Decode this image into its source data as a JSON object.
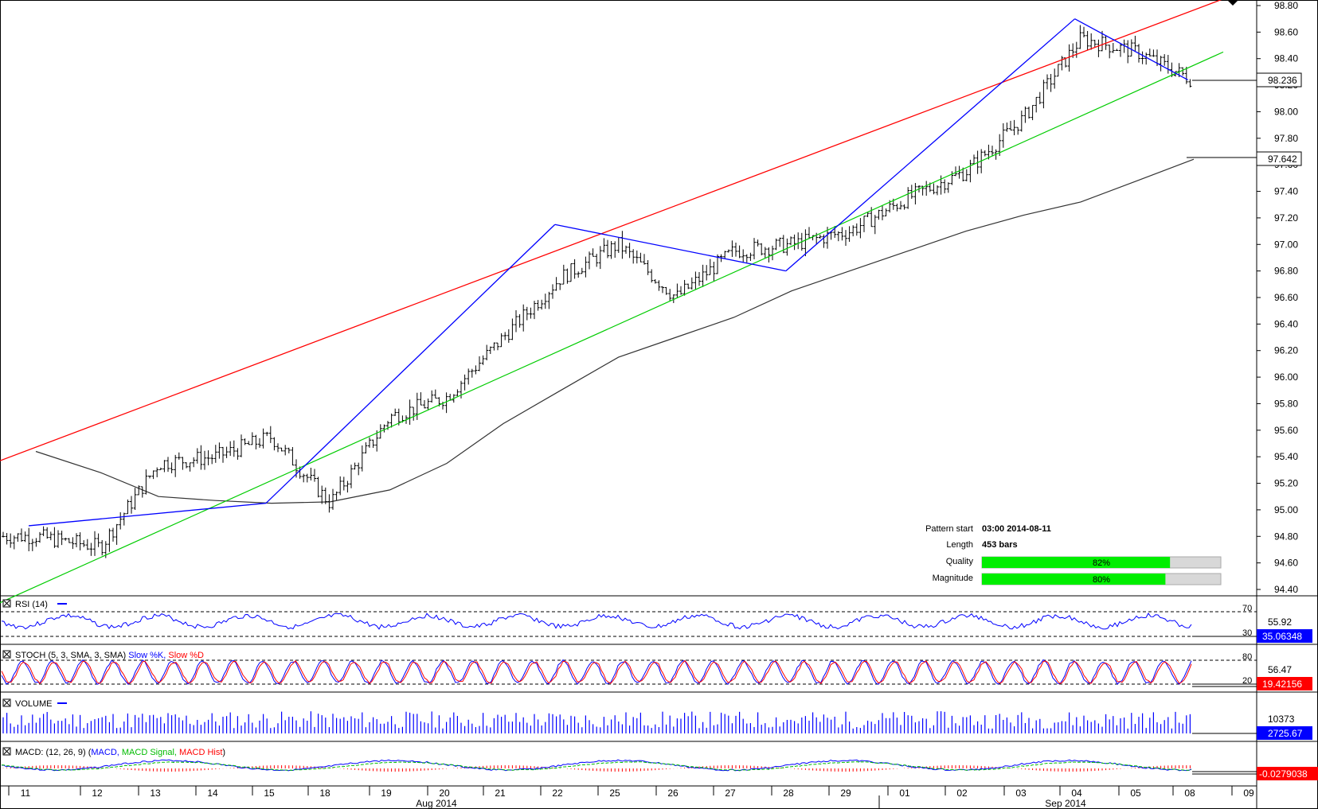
{
  "price_ticks": [
    "98.80",
    "98.60",
    "98.40",
    "98.20",
    "98.00",
    "97.80",
    "97.60",
    "97.40",
    "97.20",
    "97.00",
    "96.80",
    "96.60",
    "96.40",
    "96.20",
    "96.00",
    "95.80",
    "95.60",
    "95.40",
    "95.20",
    "95.00",
    "94.80",
    "94.60",
    "94.40"
  ],
  "current_price_label": "98.236",
  "ma_price_label": "97.642",
  "pattern_info": {
    "start_label": "Pattern start",
    "start_value": "03:00 2014-08-11",
    "length_label": "Length",
    "length_value": "453 bars",
    "quality_label": "Quality",
    "quality_value": "82%",
    "quality_fraction": 0.82,
    "magnitude_label": "Magnitude",
    "magnitude_value": "80%",
    "magnitude_fraction": 0.8
  },
  "indicators": {
    "rsi": {
      "title": "RSI (14)",
      "level_high": "70",
      "level_low": "30",
      "scale_label": "55.92",
      "value_label": "35.06348"
    },
    "stoch": {
      "title": "STOCH (5, 3, SMA, 3, SMA)",
      "k_label": "Slow %K,",
      "d_label": "Slow %D",
      "level_high": "80",
      "level_low": "20",
      "scale_label": "56.47",
      "value_label": "19.42156"
    },
    "volume": {
      "title": "VOLUME",
      "scale_label": "10373",
      "value_label": "2725.67"
    },
    "macd": {
      "title": "MACD: (12, 26, 9)",
      "macd_label": "MACD,",
      "signal_label": "MACD Signal,",
      "hist_label": "MACD Hist",
      "value_label": "-0.0279038"
    }
  },
  "x_axis": {
    "days": [
      "11",
      "12",
      "13",
      "14",
      "15",
      "18",
      "19",
      "20",
      "21",
      "22",
      "25",
      "26",
      "27",
      "28",
      "29",
      "01",
      "02",
      "03",
      "04",
      "05",
      "08",
      "09"
    ],
    "months": [
      "Aug 2014",
      "Sep 2014"
    ]
  },
  "colors": {
    "channel_upper": "#ff0000",
    "channel_lower": "#00cc00",
    "zigzag": "#0000ff",
    "moving_average": "#333333",
    "value_box": "#0000ff",
    "macd_box": "#ff0000",
    "quality_bar": "#00ee00"
  },
  "chart_data": {
    "type": "candlestick",
    "title": "",
    "ylim": [
      94.3,
      98.85
    ],
    "x_range": [
      "2014-08-11",
      "2014-09-09"
    ],
    "channel_upper": [
      {
        "x": "2014-08-11",
        "y": 95.37
      },
      {
        "x": "2014-09-09",
        "y": 98.85
      }
    ],
    "channel_lower": [
      {
        "x": "2014-08-11",
        "y": 94.3
      },
      {
        "x": "2014-09-09",
        "y": 98.45
      }
    ],
    "zigzag": [
      {
        "x": "2014-08-11",
        "y": 94.88
      },
      {
        "x": "2014-08-15",
        "y": 95.05
      },
      {
        "x": "2014-08-22",
        "y": 97.15
      },
      {
        "x": "2014-08-28",
        "y": 96.8
      },
      {
        "x": "2014-09-04",
        "y": 98.7
      },
      {
        "x": "2014-09-08",
        "y": 98.24
      }
    ],
    "moving_average": [
      {
        "x": "2014-08-11",
        "y": 95.44
      },
      {
        "x": "2014-08-12",
        "y": 95.28
      },
      {
        "x": "2014-08-13",
        "y": 95.1
      },
      {
        "x": "2014-08-14",
        "y": 95.07
      },
      {
        "x": "2014-08-15",
        "y": 95.05
      },
      {
        "x": "2014-08-18",
        "y": 95.06
      },
      {
        "x": "2014-08-19",
        "y": 95.15
      },
      {
        "x": "2014-08-20",
        "y": 95.35
      },
      {
        "x": "2014-08-21",
        "y": 95.65
      },
      {
        "x": "2014-08-22",
        "y": 95.9
      },
      {
        "x": "2014-08-25",
        "y": 96.15
      },
      {
        "x": "2014-08-26",
        "y": 96.3
      },
      {
        "x": "2014-08-27",
        "y": 96.45
      },
      {
        "x": "2014-08-28",
        "y": 96.65
      },
      {
        "x": "2014-08-29",
        "y": 96.8
      },
      {
        "x": "2014-09-01",
        "y": 96.95
      },
      {
        "x": "2014-09-02",
        "y": 97.1
      },
      {
        "x": "2014-09-03",
        "y": 97.22
      },
      {
        "x": "2014-09-04",
        "y": 97.32
      },
      {
        "x": "2014-09-05",
        "y": 97.48
      },
      {
        "x": "2014-09-08",
        "y": 97.642
      }
    ],
    "closes": [
      {
        "x": "2014-08-11",
        "y": 94.8
      },
      {
        "x": "2014-08-12",
        "y": 94.72
      },
      {
        "x": "2014-08-13",
        "y": 95.35
      },
      {
        "x": "2014-08-14",
        "y": 95.4
      },
      {
        "x": "2014-08-15",
        "y": 95.55
      },
      {
        "x": "2014-08-18",
        "y": 95.05
      },
      {
        "x": "2014-08-19",
        "y": 95.7
      },
      {
        "x": "2014-08-20",
        "y": 95.85
      },
      {
        "x": "2014-08-21",
        "y": 96.3
      },
      {
        "x": "2014-08-22",
        "y": 96.75
      },
      {
        "x": "2014-08-25",
        "y": 97.0
      },
      {
        "x": "2014-08-26",
        "y": 96.6
      },
      {
        "x": "2014-08-27",
        "y": 96.95
      },
      {
        "x": "2014-08-28",
        "y": 97.0
      },
      {
        "x": "2014-08-29",
        "y": 97.1
      },
      {
        "x": "2014-09-01",
        "y": 97.35
      },
      {
        "x": "2014-09-02",
        "y": 97.55
      },
      {
        "x": "2014-09-03",
        "y": 97.95
      },
      {
        "x": "2014-09-04",
        "y": 98.55
      },
      {
        "x": "2014-09-05",
        "y": 98.45
      },
      {
        "x": "2014-09-08",
        "y": 98.236
      }
    ]
  }
}
